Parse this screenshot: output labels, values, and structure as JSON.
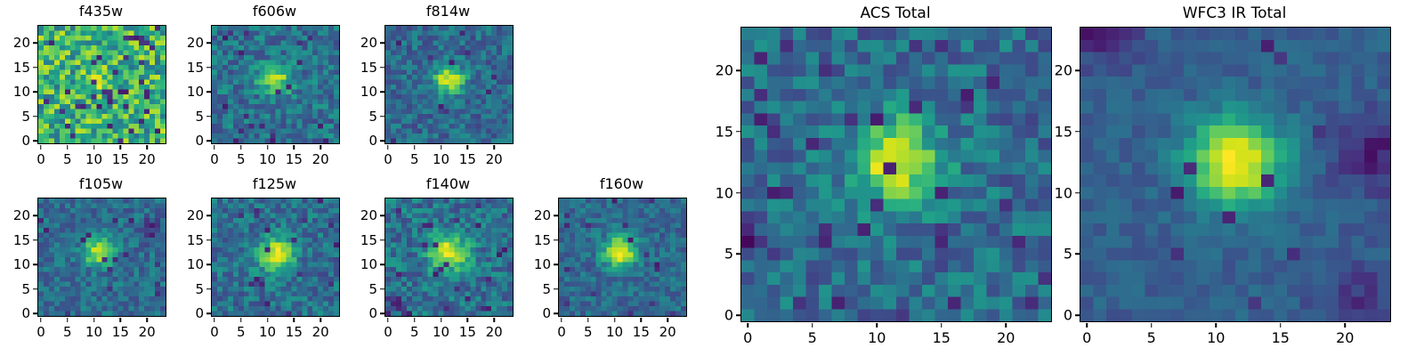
{
  "figure": {
    "background_color": "#ffffff",
    "axes_color": "#000000",
    "tick_label_color": "#000000"
  },
  "chart_data": {
    "type": "heatmap",
    "colormap": "viridis",
    "grid_size": 24,
    "x_ticks": [
      0,
      5,
      10,
      15,
      20
    ],
    "y_ticks": [
      0,
      5,
      10,
      15,
      20
    ],
    "x_range": [
      0,
      23
    ],
    "y_range": [
      0,
      23
    ],
    "panels": [
      {
        "id": "f435w",
        "title": "f435w",
        "seed": 11,
        "background": 0.62,
        "noise": 0.26,
        "dark_fraction": 0.07,
        "source": {
          "x": 11.5,
          "y": 12.5,
          "sigma": 2.0,
          "amplitude": 0.15
        },
        "dark_blobs": []
      },
      {
        "id": "f606w",
        "title": "f606w",
        "seed": 22,
        "background": 0.36,
        "noise": 0.16,
        "dark_fraction": 0.04,
        "source": {
          "x": 11.5,
          "y": 12.5,
          "sigma": 2.2,
          "amplitude": 0.45
        },
        "dark_blobs": []
      },
      {
        "id": "f814w",
        "title": "f814w",
        "seed": 33,
        "background": 0.33,
        "noise": 0.14,
        "dark_fraction": 0.02,
        "source": {
          "x": 11.5,
          "y": 12.5,
          "sigma": 1.9,
          "amplitude": 0.62
        },
        "dark_blobs": []
      },
      {
        "id": "f105w",
        "title": "f105w",
        "seed": 44,
        "background": 0.34,
        "noise": 0.13,
        "dark_fraction": 0.03,
        "source": {
          "x": 11.0,
          "y": 12.5,
          "sigma": 2.0,
          "amplitude": 0.55
        },
        "dark_blobs": [
          {
            "x": 21.0,
            "y": 17.0,
            "sigma": 1.6,
            "amplitude": 0.2
          }
        ]
      },
      {
        "id": "f125w",
        "title": "f125w",
        "seed": 55,
        "background": 0.35,
        "noise": 0.15,
        "dark_fraction": 0.03,
        "source": {
          "x": 11.5,
          "y": 12.0,
          "sigma": 2.3,
          "amplitude": 0.6
        },
        "dark_blobs": []
      },
      {
        "id": "f140w",
        "title": "f140w",
        "seed": 66,
        "background": 0.36,
        "noise": 0.16,
        "dark_fraction": 0.03,
        "source": {
          "x": 11.5,
          "y": 12.5,
          "sigma": 2.5,
          "amplitude": 0.6
        },
        "dark_blobs": [
          {
            "x": 2.0,
            "y": 2.0,
            "sigma": 1.4,
            "amplitude": 0.15
          }
        ]
      },
      {
        "id": "f160w",
        "title": "f160w",
        "seed": 77,
        "background": 0.33,
        "noise": 0.12,
        "dark_fraction": 0.02,
        "source": {
          "x": 11.0,
          "y": 12.5,
          "sigma": 2.1,
          "amplitude": 0.66
        },
        "dark_blobs": []
      },
      {
        "id": "acs_total",
        "title": "ACS Total",
        "seed": 88,
        "background": 0.34,
        "noise": 0.15,
        "dark_fraction": 0.05,
        "source": {
          "x": 11.5,
          "y": 12.5,
          "sigma": 2.4,
          "amplitude": 0.6
        },
        "dark_blobs": [
          {
            "x": 0.0,
            "y": 6.0,
            "sigma": 1.3,
            "amplitude": 0.2
          }
        ]
      },
      {
        "id": "wfc3_ir_total",
        "title": "WFC3 IR Total",
        "seed": 99,
        "background": 0.3,
        "noise": 0.07,
        "dark_fraction": 0.02,
        "source": {
          "x": 11.5,
          "y": 12.5,
          "sigma": 2.5,
          "amplitude": 0.7
        },
        "dark_blobs": [
          {
            "x": 22.5,
            "y": 13.0,
            "sigma": 2.2,
            "amplitude": 0.22
          },
          {
            "x": 2.0,
            "y": 22.5,
            "sigma": 1.8,
            "amplitude": 0.16
          },
          {
            "x": 21.0,
            "y": 1.0,
            "sigma": 2.4,
            "amplitude": 0.15
          },
          {
            "x": 0.5,
            "y": 23.0,
            "sigma": 1.2,
            "amplitude": 0.15
          }
        ]
      }
    ]
  }
}
